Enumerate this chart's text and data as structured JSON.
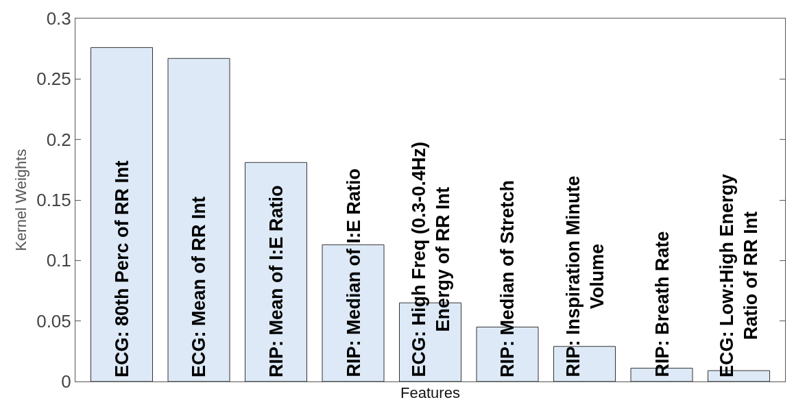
{
  "chart_data": {
    "type": "bar",
    "xlabel": "Features",
    "ylabel": "Kernel Weights",
    "categories": [
      "ECG: 80th Perc of RR Int",
      "ECG: Mean of RR Int",
      "RIP: Mean of I:E Ratio",
      "RIP: Median of I:E Ratio",
      "ECG: High Freq (0.3-0.4Hz)\nEnergy of RR Int",
      "RIP: Median of Stretch",
      "RIP: Inspiration Minute\nVolume",
      "RIP: Breath Rate",
      "ECG: Low:High Energy\nRatio of RR Int"
    ],
    "values": [
      0.276,
      0.267,
      0.181,
      0.113,
      0.065,
      0.045,
      0.029,
      0.011,
      0.009
    ],
    "color": "#dde9f6",
    "ylim": [
      0,
      0.3
    ],
    "yticks": [
      0,
      0.05,
      0.1,
      0.15,
      0.2,
      0.25,
      0.3
    ],
    "tick_labels": "y",
    "grid": false
  }
}
